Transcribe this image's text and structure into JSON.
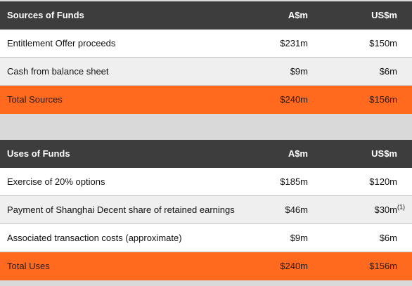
{
  "sources": {
    "header": {
      "label": "Sources of Funds",
      "col_a": "A$m",
      "col_u": "US$m"
    },
    "rows": [
      {
        "label": "Entitlement Offer proceeds",
        "a": "$231m",
        "u": "$150m"
      },
      {
        "label": "Cash from balance sheet",
        "a": "$9m",
        "u": "$6m"
      }
    ],
    "total": {
      "label": "Total Sources",
      "a": "$240m",
      "u": "$156m"
    }
  },
  "uses": {
    "header": {
      "label": "Uses of Funds",
      "col_a": "A$m",
      "col_u": "US$m"
    },
    "rows": [
      {
        "label": "Exercise of 20% options",
        "a": "$185m",
        "u": "$120m"
      },
      {
        "label": "Payment of Shanghai Decent share of retained earnings",
        "a": "$46m",
        "u": "$30m",
        "footnote": "(1)"
      },
      {
        "label": "Associated transaction costs (approximate)",
        "a": "$9m",
        "u": "$6m"
      }
    ],
    "total": {
      "label": "Total Uses",
      "a": "$240m",
      "u": "$156m"
    }
  },
  "colors": {
    "header_bg": "#3d3d3d",
    "total_bg": "#ff6a1f",
    "page_bg": "#d9d9d9"
  }
}
